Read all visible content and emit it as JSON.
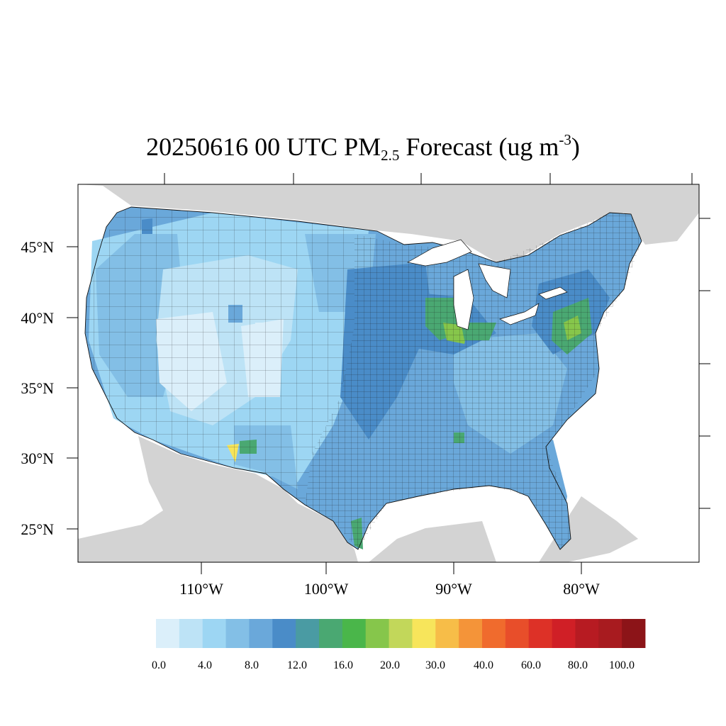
{
  "title": {
    "main": "20250616 00 UTC PM",
    "subscript": "2.5",
    "rest": " Forecast (ug m",
    "superscript": "-3",
    "close": ")"
  },
  "axes": {
    "lat_labels": [
      "45°N",
      "40°N",
      "35°N",
      "30°N",
      "25°N"
    ],
    "lon_labels": [
      "110°W",
      "100°W",
      "90°W",
      "80°W"
    ]
  },
  "colorbar": {
    "colors": [
      "#dbeffa",
      "#bde3f6",
      "#9dd6f3",
      "#83bfe6",
      "#6aa8da",
      "#4a8cc8",
      "#4a9ba3",
      "#4aa872",
      "#4ab64a",
      "#86c64b",
      "#c2d75a",
      "#f7e55b",
      "#f7bd48",
      "#f49439",
      "#f06b2d",
      "#e84e2a",
      "#dd3127",
      "#d01f26",
      "#b71b22",
      "#a81b1f",
      "#8c1418"
    ],
    "tick_labels": [
      "0.0",
      "4.0",
      "8.0",
      "12.0",
      "16.0",
      "20.0",
      "30.0",
      "40.0",
      "60.0",
      "80.0",
      "100.0"
    ]
  },
  "map": {
    "land_outside_color": "#d3d3d3",
    "water_color": "#ffffff",
    "domain_base_color": "#6aa8da"
  }
}
